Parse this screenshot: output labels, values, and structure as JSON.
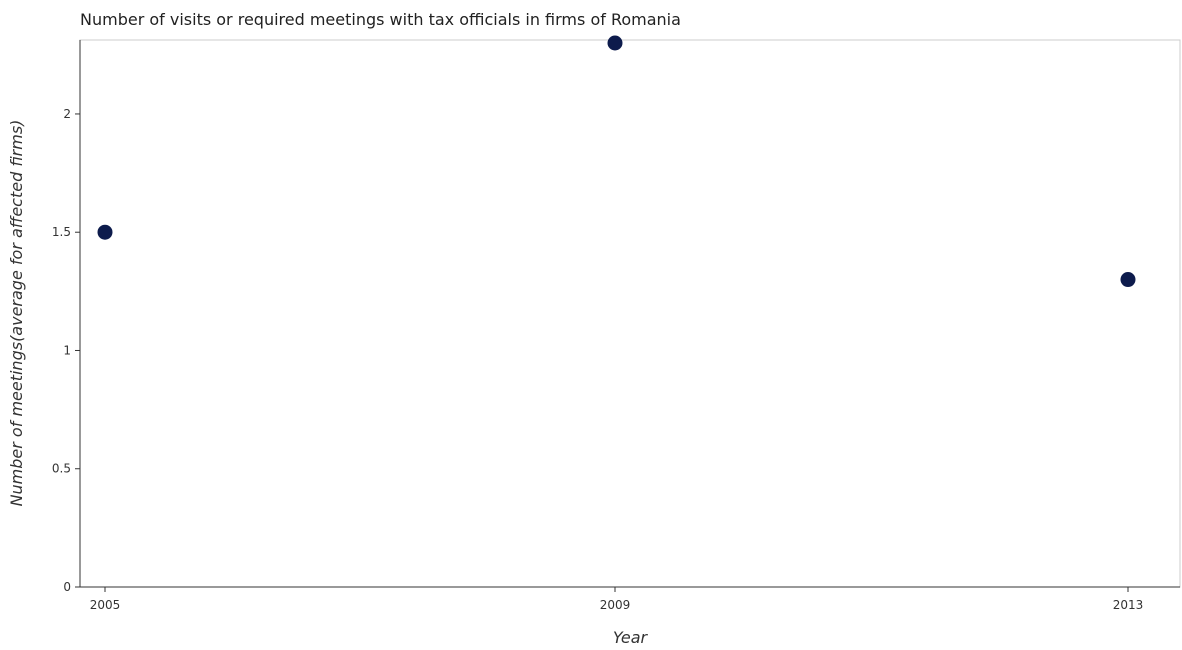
{
  "chart_data": {
    "type": "scatter",
    "title": "Number of visits or required meetings with tax officials in firms of Romania",
    "xlabel": "Year",
    "ylabel": "Number of meetings(average for affected firms)",
    "categories": [
      "2005",
      "2009",
      "2013"
    ],
    "values": [
      1.5,
      2.3,
      1.3
    ],
    "ylim": [
      0,
      2.3
    ],
    "yticks": [
      0,
      0.5,
      1,
      1.5,
      2
    ],
    "ytick_labels": [
      "0",
      "0.5",
      "1",
      "1.5",
      "2"
    ],
    "grid": false,
    "legend": "none",
    "marker_color": "#0d1b4c"
  }
}
